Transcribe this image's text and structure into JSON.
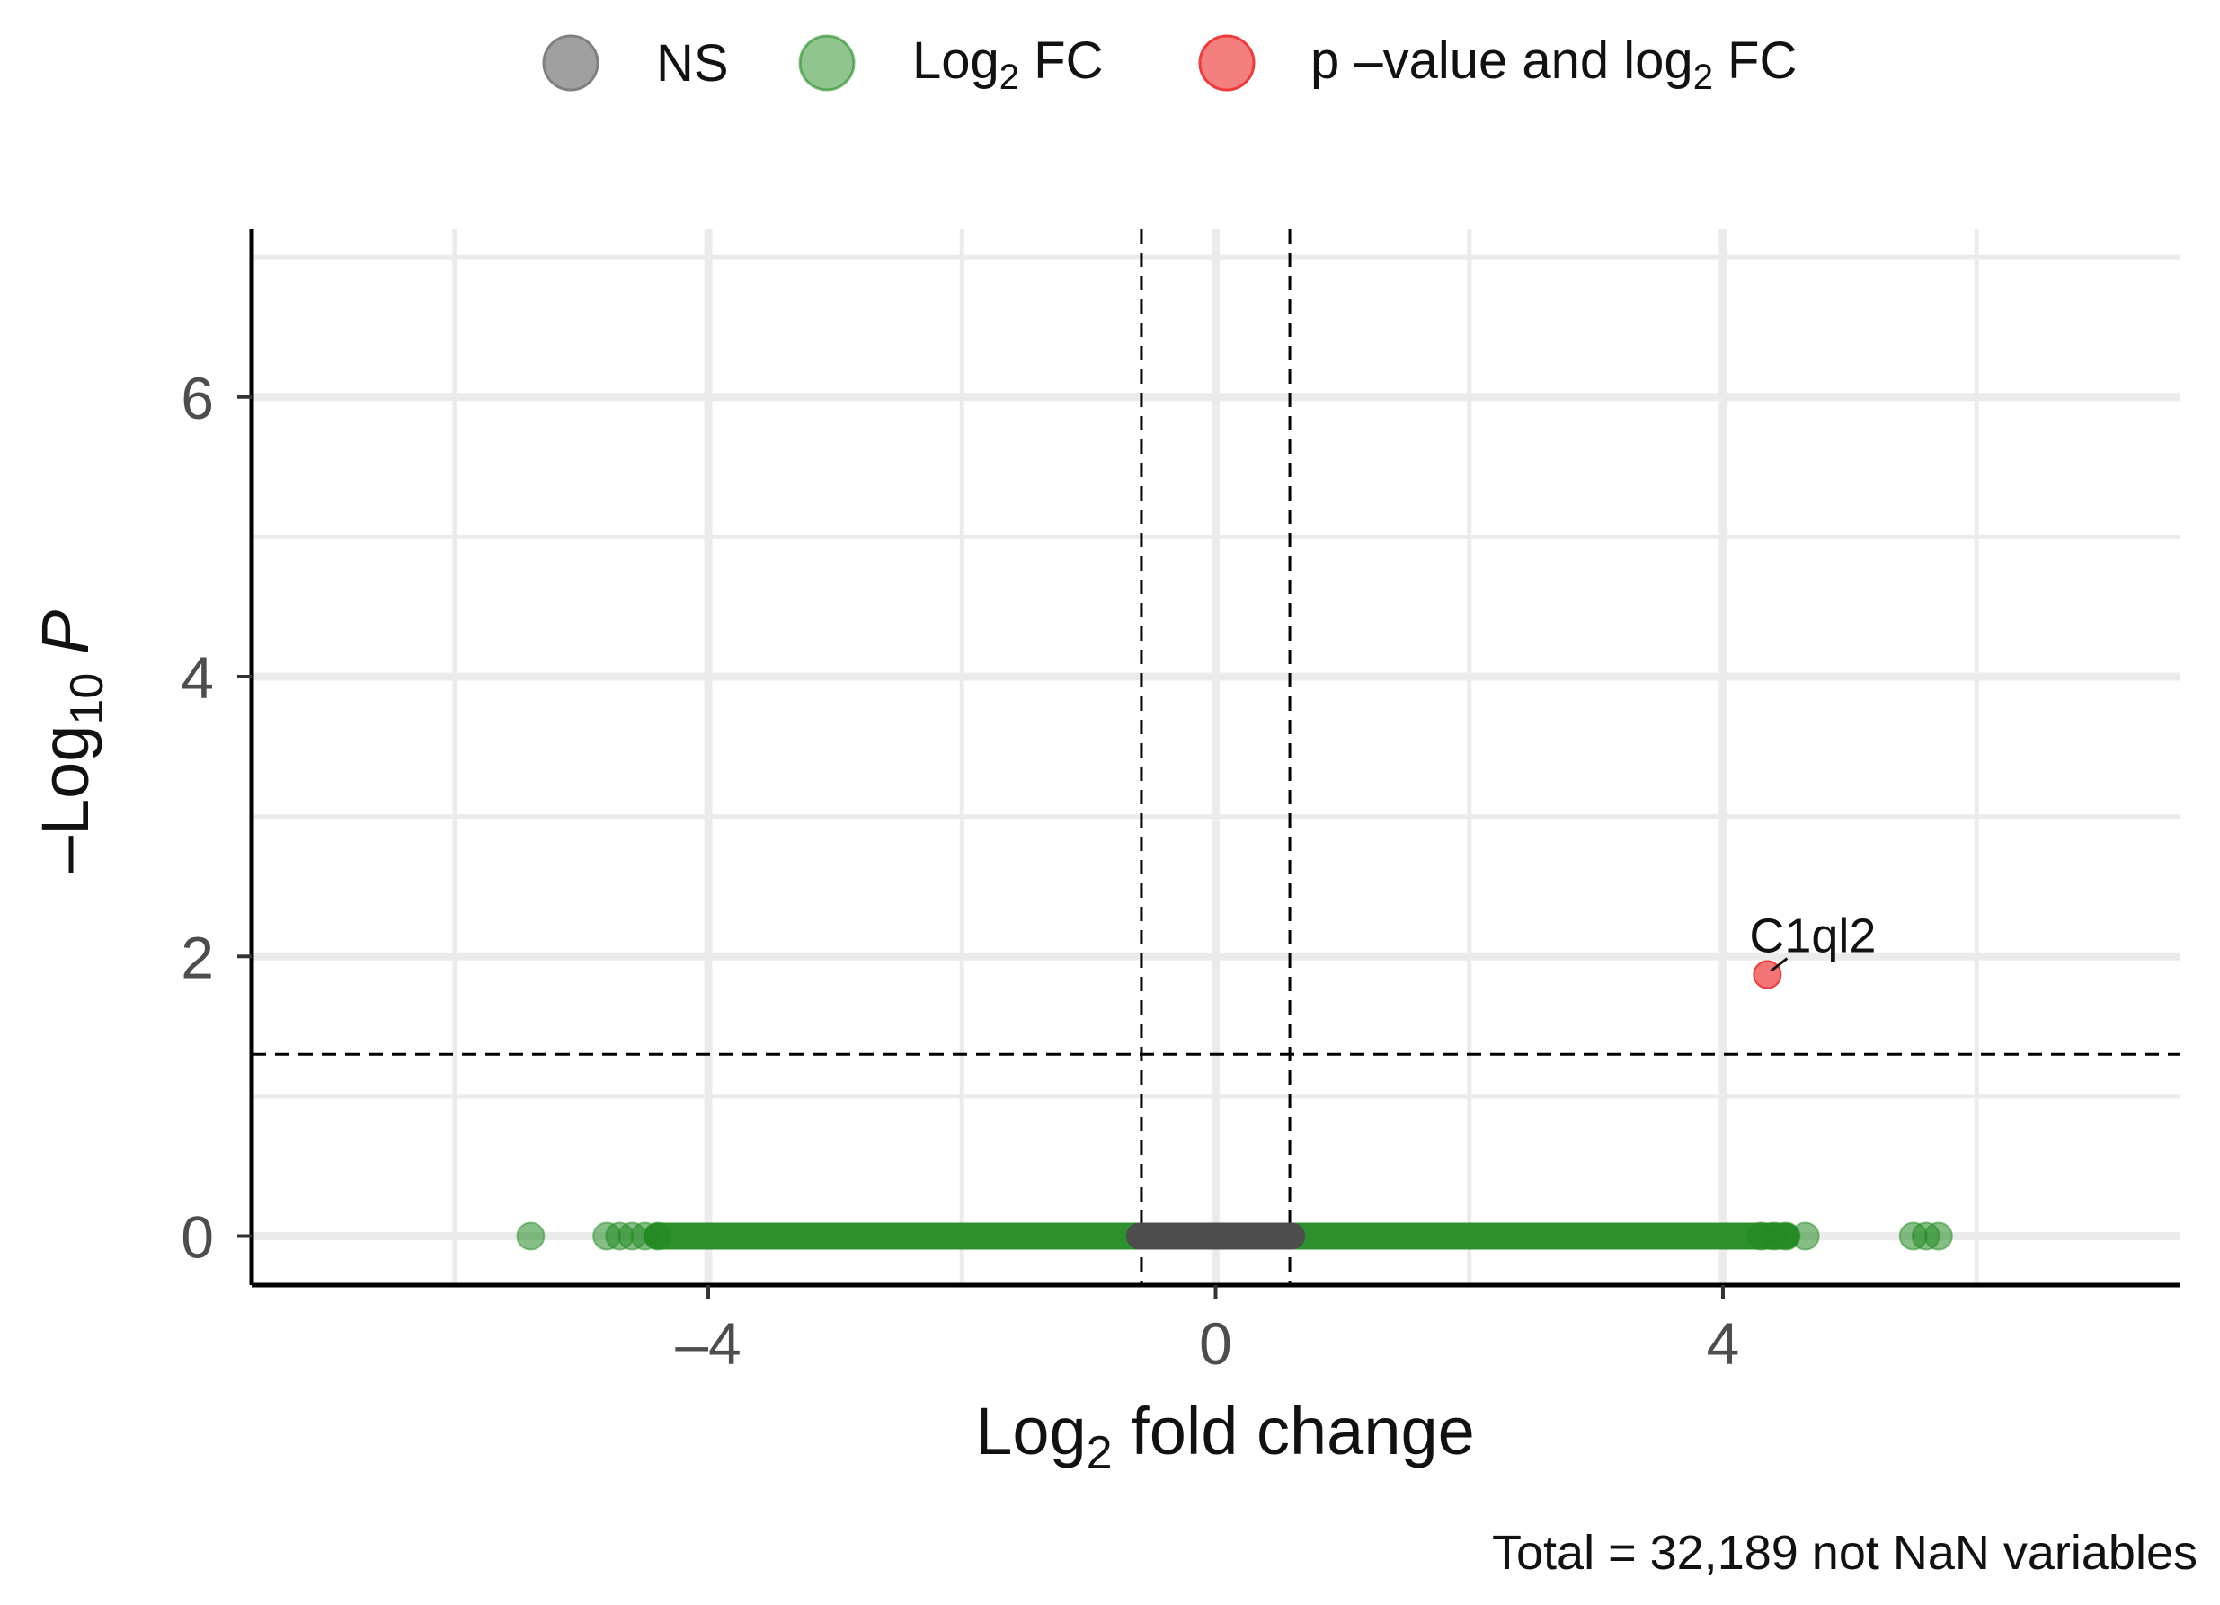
{
  "chart_data": {
    "type": "scatter",
    "title": "",
    "legend": {
      "placement": "top",
      "entries": [
        {
          "key": "ns",
          "label": "NS",
          "color": "#808080"
        },
        {
          "key": "fc",
          "label": "Log2 FC",
          "color": "#228B22"
        },
        {
          "key": "both",
          "label": "p –value and log2 FC",
          "color": "#ee3b3b"
        }
      ]
    },
    "xlabel": "Log2 fold change",
    "ylabel": "–Log10 P",
    "xlim": [
      -7.6,
      7.6
    ],
    "ylim": [
      -0.35,
      7.2
    ],
    "xticks": [
      -4,
      0,
      4
    ],
    "xtick_labels": [
      "–4",
      "0",
      "4"
    ],
    "yticks": [
      0,
      2,
      4,
      6
    ],
    "ytick_labels": [
      "0",
      "2",
      "4",
      "6"
    ],
    "grid": true,
    "thresholds": {
      "fc_cutoff": [
        -0.585,
        0.585
      ],
      "p_cutoff_neglog10": 1.3
    },
    "series": [
      {
        "name": "NS",
        "color": "#4d4d4d",
        "x_range": [
          -0.6,
          0.6
        ],
        "y": 0
      },
      {
        "name": "Log2 FC",
        "color": "#228B22",
        "points": [
          {
            "x": -5.4,
            "y": 0
          },
          {
            "x": -4.8,
            "y": 0
          },
          {
            "x": -4.7,
            "y": 0
          },
          {
            "x": -4.6,
            "y": 0
          },
          {
            "x": -4.5,
            "y": 0
          },
          {
            "x": -4.4,
            "y": 0
          },
          {
            "x": 4.3,
            "y": 0
          },
          {
            "x": 4.4,
            "y": 0
          },
          {
            "x": 4.5,
            "y": 0
          },
          {
            "x": 4.65,
            "y": 0
          },
          {
            "x": 5.5,
            "y": 0
          },
          {
            "x": 5.6,
            "y": 0
          },
          {
            "x": 5.7,
            "y": 0
          }
        ],
        "dense_ranges": [
          [
            -4.4,
            -0.6
          ],
          [
            0.6,
            4.5
          ]
        ]
      },
      {
        "name": "p –value and log2 FC",
        "color": "#ee3b3b",
        "points": [
          {
            "x": 4.35,
            "y": 1.87,
            "label": "C1ql2"
          }
        ]
      }
    ],
    "caption": "Total = 32,189 not NaN variables"
  }
}
